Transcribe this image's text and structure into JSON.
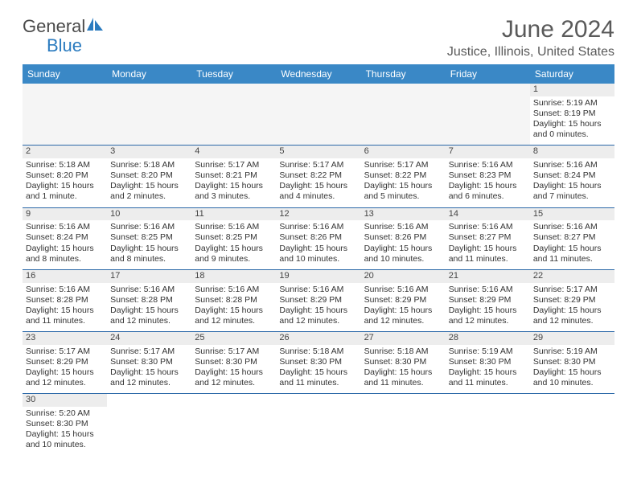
{
  "brand": {
    "part1": "General",
    "part2": "Blue"
  },
  "title": "June 2024",
  "location": "Justice, Illinois, United States",
  "colors": {
    "header_bg": "#3a88c6",
    "header_text": "#ffffff",
    "dayrow_bg": "#ededed",
    "rule": "#2b68a8",
    "title_color": "#5a5a5a",
    "brand_blue": "#2b7bbf"
  },
  "weekdays": [
    "Sunday",
    "Monday",
    "Tuesday",
    "Wednesday",
    "Thursday",
    "Friday",
    "Saturday"
  ],
  "weeks": [
    [
      null,
      null,
      null,
      null,
      null,
      null,
      {
        "n": "1",
        "sunrise": "Sunrise: 5:19 AM",
        "sunset": "Sunset: 8:19 PM",
        "daylight": "Daylight: 15 hours and 0 minutes."
      }
    ],
    [
      {
        "n": "2",
        "sunrise": "Sunrise: 5:18 AM",
        "sunset": "Sunset: 8:20 PM",
        "daylight": "Daylight: 15 hours and 1 minute."
      },
      {
        "n": "3",
        "sunrise": "Sunrise: 5:18 AM",
        "sunset": "Sunset: 8:20 PM",
        "daylight": "Daylight: 15 hours and 2 minutes."
      },
      {
        "n": "4",
        "sunrise": "Sunrise: 5:17 AM",
        "sunset": "Sunset: 8:21 PM",
        "daylight": "Daylight: 15 hours and 3 minutes."
      },
      {
        "n": "5",
        "sunrise": "Sunrise: 5:17 AM",
        "sunset": "Sunset: 8:22 PM",
        "daylight": "Daylight: 15 hours and 4 minutes."
      },
      {
        "n": "6",
        "sunrise": "Sunrise: 5:17 AM",
        "sunset": "Sunset: 8:22 PM",
        "daylight": "Daylight: 15 hours and 5 minutes."
      },
      {
        "n": "7",
        "sunrise": "Sunrise: 5:16 AM",
        "sunset": "Sunset: 8:23 PM",
        "daylight": "Daylight: 15 hours and 6 minutes."
      },
      {
        "n": "8",
        "sunrise": "Sunrise: 5:16 AM",
        "sunset": "Sunset: 8:24 PM",
        "daylight": "Daylight: 15 hours and 7 minutes."
      }
    ],
    [
      {
        "n": "9",
        "sunrise": "Sunrise: 5:16 AM",
        "sunset": "Sunset: 8:24 PM",
        "daylight": "Daylight: 15 hours and 8 minutes."
      },
      {
        "n": "10",
        "sunrise": "Sunrise: 5:16 AM",
        "sunset": "Sunset: 8:25 PM",
        "daylight": "Daylight: 15 hours and 8 minutes."
      },
      {
        "n": "11",
        "sunrise": "Sunrise: 5:16 AM",
        "sunset": "Sunset: 8:25 PM",
        "daylight": "Daylight: 15 hours and 9 minutes."
      },
      {
        "n": "12",
        "sunrise": "Sunrise: 5:16 AM",
        "sunset": "Sunset: 8:26 PM",
        "daylight": "Daylight: 15 hours and 10 minutes."
      },
      {
        "n": "13",
        "sunrise": "Sunrise: 5:16 AM",
        "sunset": "Sunset: 8:26 PM",
        "daylight": "Daylight: 15 hours and 10 minutes."
      },
      {
        "n": "14",
        "sunrise": "Sunrise: 5:16 AM",
        "sunset": "Sunset: 8:27 PM",
        "daylight": "Daylight: 15 hours and 11 minutes."
      },
      {
        "n": "15",
        "sunrise": "Sunrise: 5:16 AM",
        "sunset": "Sunset: 8:27 PM",
        "daylight": "Daylight: 15 hours and 11 minutes."
      }
    ],
    [
      {
        "n": "16",
        "sunrise": "Sunrise: 5:16 AM",
        "sunset": "Sunset: 8:28 PM",
        "daylight": "Daylight: 15 hours and 11 minutes."
      },
      {
        "n": "17",
        "sunrise": "Sunrise: 5:16 AM",
        "sunset": "Sunset: 8:28 PM",
        "daylight": "Daylight: 15 hours and 12 minutes."
      },
      {
        "n": "18",
        "sunrise": "Sunrise: 5:16 AM",
        "sunset": "Sunset: 8:28 PM",
        "daylight": "Daylight: 15 hours and 12 minutes."
      },
      {
        "n": "19",
        "sunrise": "Sunrise: 5:16 AM",
        "sunset": "Sunset: 8:29 PM",
        "daylight": "Daylight: 15 hours and 12 minutes."
      },
      {
        "n": "20",
        "sunrise": "Sunrise: 5:16 AM",
        "sunset": "Sunset: 8:29 PM",
        "daylight": "Daylight: 15 hours and 12 minutes."
      },
      {
        "n": "21",
        "sunrise": "Sunrise: 5:16 AM",
        "sunset": "Sunset: 8:29 PM",
        "daylight": "Daylight: 15 hours and 12 minutes."
      },
      {
        "n": "22",
        "sunrise": "Sunrise: 5:17 AM",
        "sunset": "Sunset: 8:29 PM",
        "daylight": "Daylight: 15 hours and 12 minutes."
      }
    ],
    [
      {
        "n": "23",
        "sunrise": "Sunrise: 5:17 AM",
        "sunset": "Sunset: 8:29 PM",
        "daylight": "Daylight: 15 hours and 12 minutes."
      },
      {
        "n": "24",
        "sunrise": "Sunrise: 5:17 AM",
        "sunset": "Sunset: 8:30 PM",
        "daylight": "Daylight: 15 hours and 12 minutes."
      },
      {
        "n": "25",
        "sunrise": "Sunrise: 5:17 AM",
        "sunset": "Sunset: 8:30 PM",
        "daylight": "Daylight: 15 hours and 12 minutes."
      },
      {
        "n": "26",
        "sunrise": "Sunrise: 5:18 AM",
        "sunset": "Sunset: 8:30 PM",
        "daylight": "Daylight: 15 hours and 11 minutes."
      },
      {
        "n": "27",
        "sunrise": "Sunrise: 5:18 AM",
        "sunset": "Sunset: 8:30 PM",
        "daylight": "Daylight: 15 hours and 11 minutes."
      },
      {
        "n": "28",
        "sunrise": "Sunrise: 5:19 AM",
        "sunset": "Sunset: 8:30 PM",
        "daylight": "Daylight: 15 hours and 11 minutes."
      },
      {
        "n": "29",
        "sunrise": "Sunrise: 5:19 AM",
        "sunset": "Sunset: 8:30 PM",
        "daylight": "Daylight: 15 hours and 10 minutes."
      }
    ],
    [
      {
        "n": "30",
        "sunrise": "Sunrise: 5:20 AM",
        "sunset": "Sunset: 8:30 PM",
        "daylight": "Daylight: 15 hours and 10 minutes."
      },
      null,
      null,
      null,
      null,
      null,
      null
    ]
  ]
}
